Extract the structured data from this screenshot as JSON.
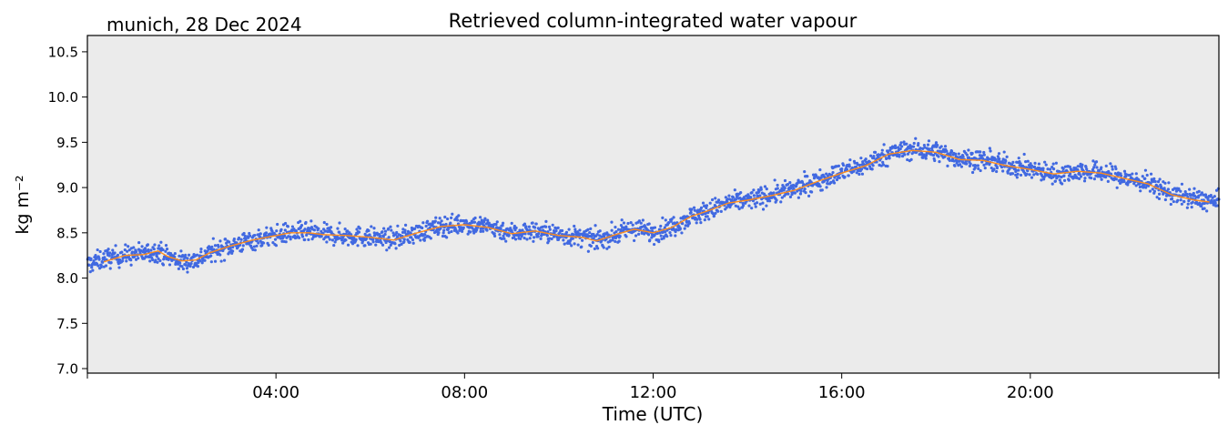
{
  "header": {
    "location_date": "munich, 28 Dec 2024"
  },
  "chart_data": {
    "type": "scatter",
    "title": "Retrieved column-integrated water vapour",
    "xlabel": "Time (UTC)",
    "ylabel": "kg m⁻²",
    "xlim_hours": [
      0,
      24
    ],
    "ylim": [
      6.95,
      10.68
    ],
    "x_ticks": [
      "04:00",
      "08:00",
      "12:00",
      "16:00",
      "20:00"
    ],
    "x_tick_hours": [
      4,
      8,
      12,
      16,
      20
    ],
    "y_ticks": [
      "7.0",
      "7.5",
      "8.0",
      "8.5",
      "9.0",
      "9.5",
      "10.0",
      "10.5"
    ],
    "grid": false,
    "background": "#ebebeb",
    "series": [
      {
        "style": "scatter",
        "color": "#4169e1",
        "x_hours": [
          0.0,
          0.4,
          0.8,
          1.2,
          1.5,
          1.7,
          2.0,
          2.3,
          2.6,
          3.0,
          3.5,
          4.0,
          4.3,
          4.7,
          5.0,
          5.5,
          6.0,
          6.5,
          7.0,
          7.5,
          8.0,
          8.5,
          9.0,
          9.5,
          10.0,
          10.5,
          10.8,
          11.2,
          11.6,
          12.0,
          12.4,
          12.8,
          13.2,
          13.6,
          14.0,
          14.5,
          15.0,
          15.5,
          16.0,
          16.5,
          17.0,
          17.5,
          18.0,
          18.5,
          19.0,
          19.5,
          20.0,
          20.5,
          21.0,
          21.5,
          22.0,
          22.5,
          23.0,
          23.5,
          24.0
        ],
        "values": [
          8.15,
          8.22,
          8.25,
          8.27,
          8.3,
          8.24,
          8.18,
          8.2,
          8.28,
          8.35,
          8.42,
          8.47,
          8.5,
          8.5,
          8.48,
          8.47,
          8.45,
          8.43,
          8.5,
          8.57,
          8.6,
          8.57,
          8.5,
          8.52,
          8.48,
          8.45,
          8.42,
          8.48,
          8.55,
          8.5,
          8.57,
          8.68,
          8.75,
          8.83,
          8.86,
          8.92,
          8.98,
          9.08,
          9.17,
          9.25,
          9.38,
          9.42,
          9.4,
          9.32,
          9.3,
          9.25,
          9.2,
          9.15,
          9.18,
          9.17,
          9.1,
          9.05,
          8.93,
          8.87,
          8.84
        ]
      },
      {
        "style": "line",
        "color": "#ff8c1a",
        "x_hours": [
          0.35,
          0.8,
          1.2,
          1.5,
          1.7,
          2.0,
          2.3,
          2.6,
          3.0,
          3.5,
          4.0,
          4.3,
          4.7,
          5.0,
          5.5,
          6.0,
          6.5,
          7.0,
          7.5,
          8.0,
          8.5,
          9.0,
          9.5,
          10.0,
          10.5,
          10.8,
          11.2,
          11.6,
          12.0,
          12.4,
          12.8,
          13.2,
          13.6,
          14.0,
          14.5,
          15.0,
          15.5,
          16.0,
          16.5,
          17.0,
          17.5,
          18.0,
          18.5,
          19.0,
          19.5,
          20.0,
          20.5,
          21.0,
          21.5,
          22.0,
          22.5,
          23.0,
          23.5,
          23.8
        ],
        "values": [
          8.18,
          8.25,
          8.26,
          8.3,
          8.24,
          8.19,
          8.2,
          8.28,
          8.35,
          8.42,
          8.47,
          8.5,
          8.5,
          8.48,
          8.47,
          8.45,
          8.42,
          8.5,
          8.57,
          8.59,
          8.56,
          8.49,
          8.52,
          8.47,
          8.45,
          8.41,
          8.48,
          8.54,
          8.5,
          8.56,
          8.68,
          8.75,
          8.83,
          8.86,
          8.91,
          8.97,
          9.07,
          9.16,
          9.24,
          9.37,
          9.41,
          9.39,
          9.31,
          9.3,
          9.24,
          9.2,
          9.15,
          9.18,
          9.16,
          9.1,
          9.04,
          8.92,
          8.86,
          8.84
        ]
      }
    ]
  }
}
